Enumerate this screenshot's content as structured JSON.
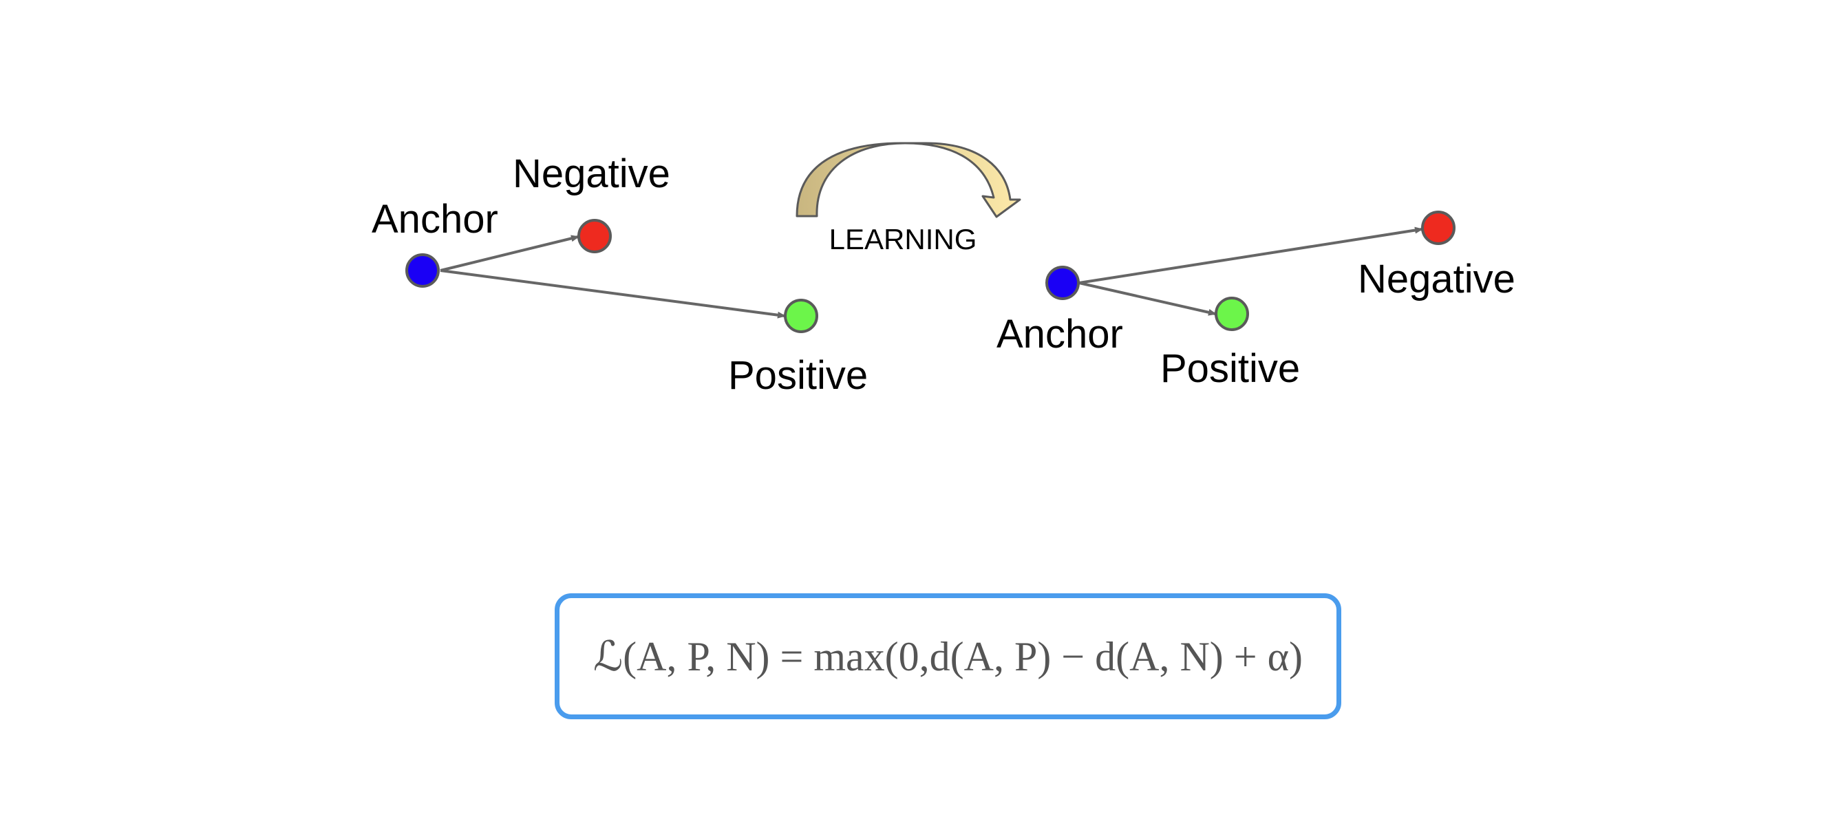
{
  "before": {
    "anchor": {
      "label": "Anchor",
      "color": "#1a00f5"
    },
    "negative": {
      "label": "Negative",
      "color": "#ee2a1f"
    },
    "positive": {
      "label": "Positive",
      "color": "#6cf54a"
    }
  },
  "transition": {
    "label": "LEARNING",
    "arrow_colors": {
      "dark": "#c9b680",
      "light": "#fde9a9"
    }
  },
  "after": {
    "anchor": {
      "label": "Anchor",
      "color": "#1a00f5"
    },
    "negative": {
      "label": "Negative",
      "color": "#ee2a1f"
    },
    "positive": {
      "label": "Positive",
      "color": "#6cf54a"
    }
  },
  "formula": {
    "text": "ℒ(A, P, N) = max(0,d(A, P) − d(A, N) + α)",
    "border_color": "#4a9ced"
  }
}
